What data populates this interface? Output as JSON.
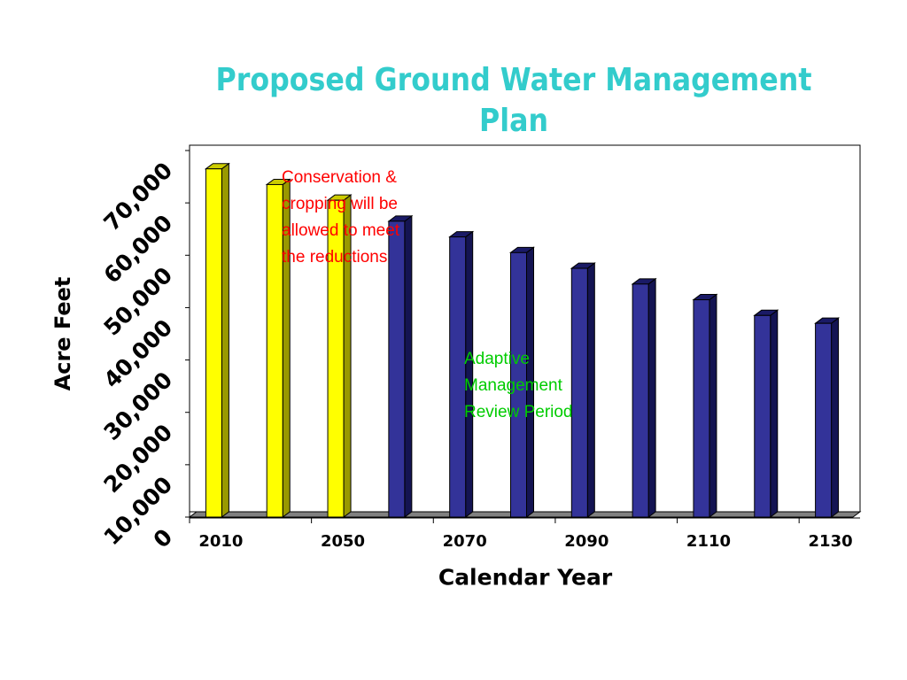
{
  "chart_data": {
    "type": "bar",
    "title": [
      "Proposed Ground Water Management",
      "Plan"
    ],
    "xlabel": "Calendar Year",
    "ylabel": "Acre Feet",
    "ylim": [
      0,
      70000
    ],
    "y_ticks": [
      "0",
      "10,000",
      "20,000",
      "30,000",
      "40,000",
      "50,000",
      "60,000",
      "70,000"
    ],
    "x_tick_labels": [
      "2010",
      "2050",
      "2070",
      "2090",
      "2110",
      "2130"
    ],
    "grid": false,
    "legend": "none",
    "three_d": true,
    "series": [
      {
        "values": [
          66500,
          63500,
          60500,
          56500,
          53500,
          50500,
          47500,
          44500,
          41500,
          38500,
          37000
        ],
        "colors": [
          "#ffff00",
          "#ffff00",
          "#ffff00",
          "#333399",
          "#333399",
          "#333399",
          "#333399",
          "#333399",
          "#333399",
          "#333399",
          "#333399"
        ]
      }
    ],
    "annotations": [
      {
        "text": [
          "Conservation &",
          "cropping will be",
          "allowed to meet",
          "the reductions"
        ],
        "color": "#ff0000"
      },
      {
        "text": [
          "Adaptive",
          "Management",
          "Review Period"
        ],
        "color": "#00cc00"
      }
    ]
  },
  "colors": {
    "title": "#33cccc",
    "early_bars": "#ffff00",
    "later_bars": "#333399",
    "conservation_note": "#ff0000",
    "adaptive_note": "#00cc00"
  }
}
